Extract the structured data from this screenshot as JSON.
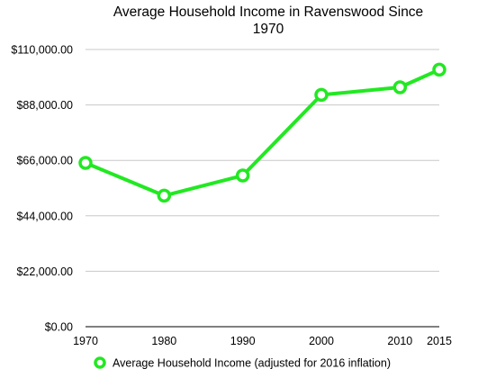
{
  "chart_data": {
    "type": "line",
    "title_lines": [
      "Average Household Income in Ravenswood Since",
      "1970"
    ],
    "title": "Average Household Income in Ravenswood Since 1970",
    "x": [
      1970,
      1980,
      1990,
      2000,
      2010,
      2015
    ],
    "x_tick_labels": [
      "1970",
      "1980",
      "1990",
      "2000",
      "2010",
      "2015"
    ],
    "ylim": [
      0,
      110000
    ],
    "y_ticks": [
      0,
      22000,
      44000,
      66000,
      88000,
      110000
    ],
    "y_tick_labels": [
      "$0.00",
      "$22,000.00",
      "$44,000.00",
      "$66,000.00",
      "$88,000.00",
      "$110,000.00"
    ],
    "grid": true,
    "legend_position": "bottom",
    "series": [
      {
        "name": "Average Household Income (adjusted for 2016 inflation)",
        "color": "#22e822",
        "values": [
          65000,
          52000,
          60000,
          92000,
          95000,
          102000
        ]
      }
    ]
  }
}
